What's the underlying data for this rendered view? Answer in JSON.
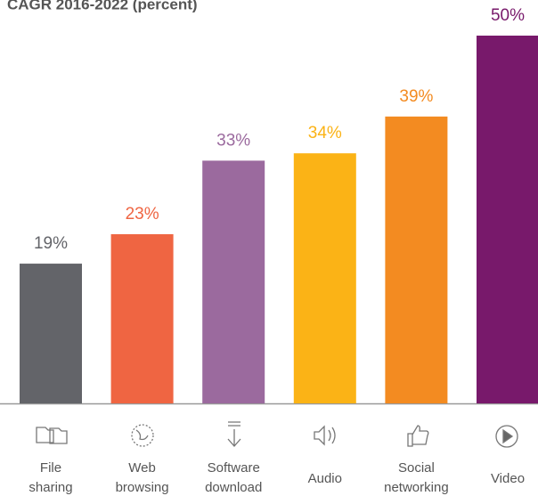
{
  "chart_data": {
    "type": "bar",
    "title": "CAGR 2016-2022 (percent)",
    "categories": [
      [
        "File",
        "sharing"
      ],
      [
        "Web",
        "browsing"
      ],
      [
        "Software",
        "download"
      ],
      [
        "Audio"
      ],
      [
        "Social",
        "networking"
      ],
      [
        "Video"
      ]
    ],
    "values": [
      19,
      23,
      33,
      34,
      39,
      50
    ],
    "value_labels": [
      "19%",
      "23%",
      "33%",
      "34%",
      "39%",
      "50%"
    ],
    "colors": [
      "#636469",
      "#ef6542",
      "#9b6a9e",
      "#fbb316",
      "#f38b21",
      "#78196b"
    ]
  }
}
